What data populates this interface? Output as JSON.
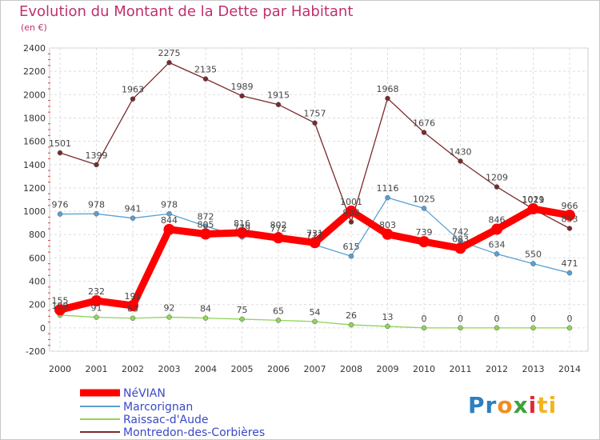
{
  "header": {
    "title": "Evolution du Montant de la Dette par Habitant",
    "subtitle": "(en €)"
  },
  "logo": {
    "parts": [
      "Pr",
      "o",
      "x",
      "i",
      "ti"
    ],
    "colors": [
      "#2d7fc1",
      "#f28c1e",
      "#3aa23a",
      "#e2273a",
      "#f2b51e"
    ]
  },
  "chart_data": {
    "type": "line",
    "x": [
      "2000",
      "2001",
      "2002",
      "2003",
      "2004",
      "2005",
      "2006",
      "2007",
      "2008",
      "2009",
      "2010",
      "2011",
      "2012",
      "2013",
      "2014"
    ],
    "ylim": [
      -200,
      2400
    ],
    "yticks": [
      "-200",
      "0",
      "200",
      "400",
      "600",
      "800",
      "1000",
      "1200",
      "1400",
      "1600",
      "1800",
      "2000",
      "2200",
      "2400"
    ],
    "grid": true,
    "legend_position": "bottom-left",
    "series": [
      {
        "name": "NéVIAN",
        "color": "#ff0000",
        "values": [
          155,
          232,
          191,
          844,
          805,
          816,
          772,
          731,
          1001,
          803,
          739,
          683,
          846,
          1021,
          966
        ],
        "labels": [
          "155",
          "232",
          "191",
          "844",
          "805",
          "816",
          "772",
          "731",
          "1001",
          "803",
          "739",
          "683",
          "846",
          "1021",
          "966"
        ]
      },
      {
        "name": "Marcorignan",
        "color": "#5aa0d2",
        "values": [
          976,
          978,
          941,
          978,
          872,
          779,
          802,
          712,
          615,
          1116,
          1025,
          742,
          634,
          550,
          471
        ],
        "labels": [
          "976",
          "978",
          "941",
          "978",
          "872",
          "779",
          "802",
          "712",
          "615",
          "1116",
          "1025",
          "742",
          "634",
          "550",
          "471"
        ]
      },
      {
        "name": "Raissac-d'Aude",
        "color": "#8fd45a",
        "values": [
          109,
          91,
          83,
          92,
          84,
          75,
          65,
          54,
          26,
          13,
          0,
          0,
          0,
          0,
          0
        ],
        "labels": [
          "109",
          "91",
          "83",
          "92",
          "84",
          "75",
          "65",
          "54",
          "26",
          "13",
          "0",
          "0",
          "0",
          "0",
          "0"
        ]
      },
      {
        "name": "Montredon-des-Corbières",
        "color": "#7b2a2a",
        "values": [
          1501,
          1399,
          1963,
          2275,
          2135,
          1989,
          1915,
          1757,
          908,
          1968,
          1676,
          1430,
          1209,
          1019,
          853
        ],
        "labels": [
          "1501",
          "1399",
          "1963",
          "2275",
          "2135",
          "1989",
          "1915",
          "1757",
          "908",
          "1968",
          "1676",
          "1430",
          "1209",
          "1019",
          "853"
        ]
      }
    ]
  }
}
